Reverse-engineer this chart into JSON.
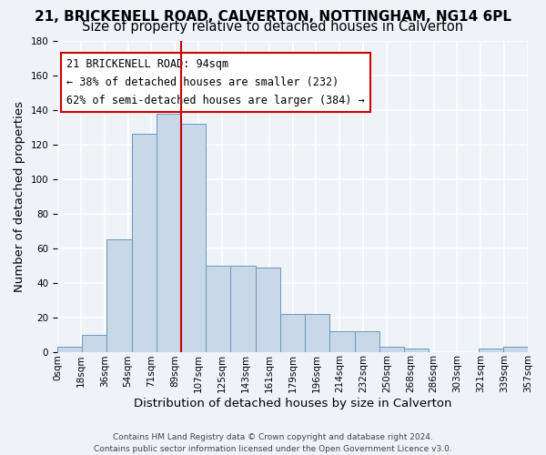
{
  "title_line1": "21, BRICKENELL ROAD, CALVERTON, NOTTINGHAM, NG14 6PL",
  "title_line2": "Size of property relative to detached houses in Calverton",
  "xlabel": "Distribution of detached houses by size in Calverton",
  "ylabel": "Number of detached properties",
  "bar_color": "#c8d8e8",
  "bar_edge_color": "#6699bb",
  "bin_labels": [
    "0sqm",
    "18sqm",
    "36sqm",
    "54sqm",
    "71sqm",
    "89sqm",
    "107sqm",
    "125sqm",
    "143sqm",
    "161sqm",
    "179sqm",
    "196sqm",
    "214sqm",
    "232sqm",
    "250sqm",
    "268sqm",
    "286sqm",
    "303sqm",
    "321sqm",
    "339sqm",
    "357sqm"
  ],
  "bar_heights": [
    3,
    10,
    65,
    126,
    138,
    132,
    50,
    50,
    49,
    22,
    22,
    12,
    12,
    3,
    2,
    0,
    0,
    2,
    3
  ],
  "ylim": [
    0,
    180
  ],
  "yticks": [
    0,
    20,
    40,
    60,
    80,
    100,
    120,
    140,
    160,
    180
  ],
  "property_label": "21 BRICKENELL ROAD: 94sqm",
  "annotation_line1": "← 38% of detached houses are smaller (232)",
  "annotation_line2": "62% of semi-detached houses are larger (384) →",
  "annotation_box_color": "#ffffff",
  "annotation_box_edge": "#cc0000",
  "vline_color": "#cc0000",
  "background_color": "#eef3f8",
  "grid_color": "#ffffff",
  "footer_line1": "Contains HM Land Registry data © Crown copyright and database right 2024.",
  "footer_line2": "Contains public sector information licensed under the Open Government Licence v3.0.",
  "title_fontsize": 11,
  "subtitle_fontsize": 10.5,
  "axis_label_fontsize": 9.5,
  "tick_fontsize": 7.5,
  "annotation_fontsize": 8.5
}
